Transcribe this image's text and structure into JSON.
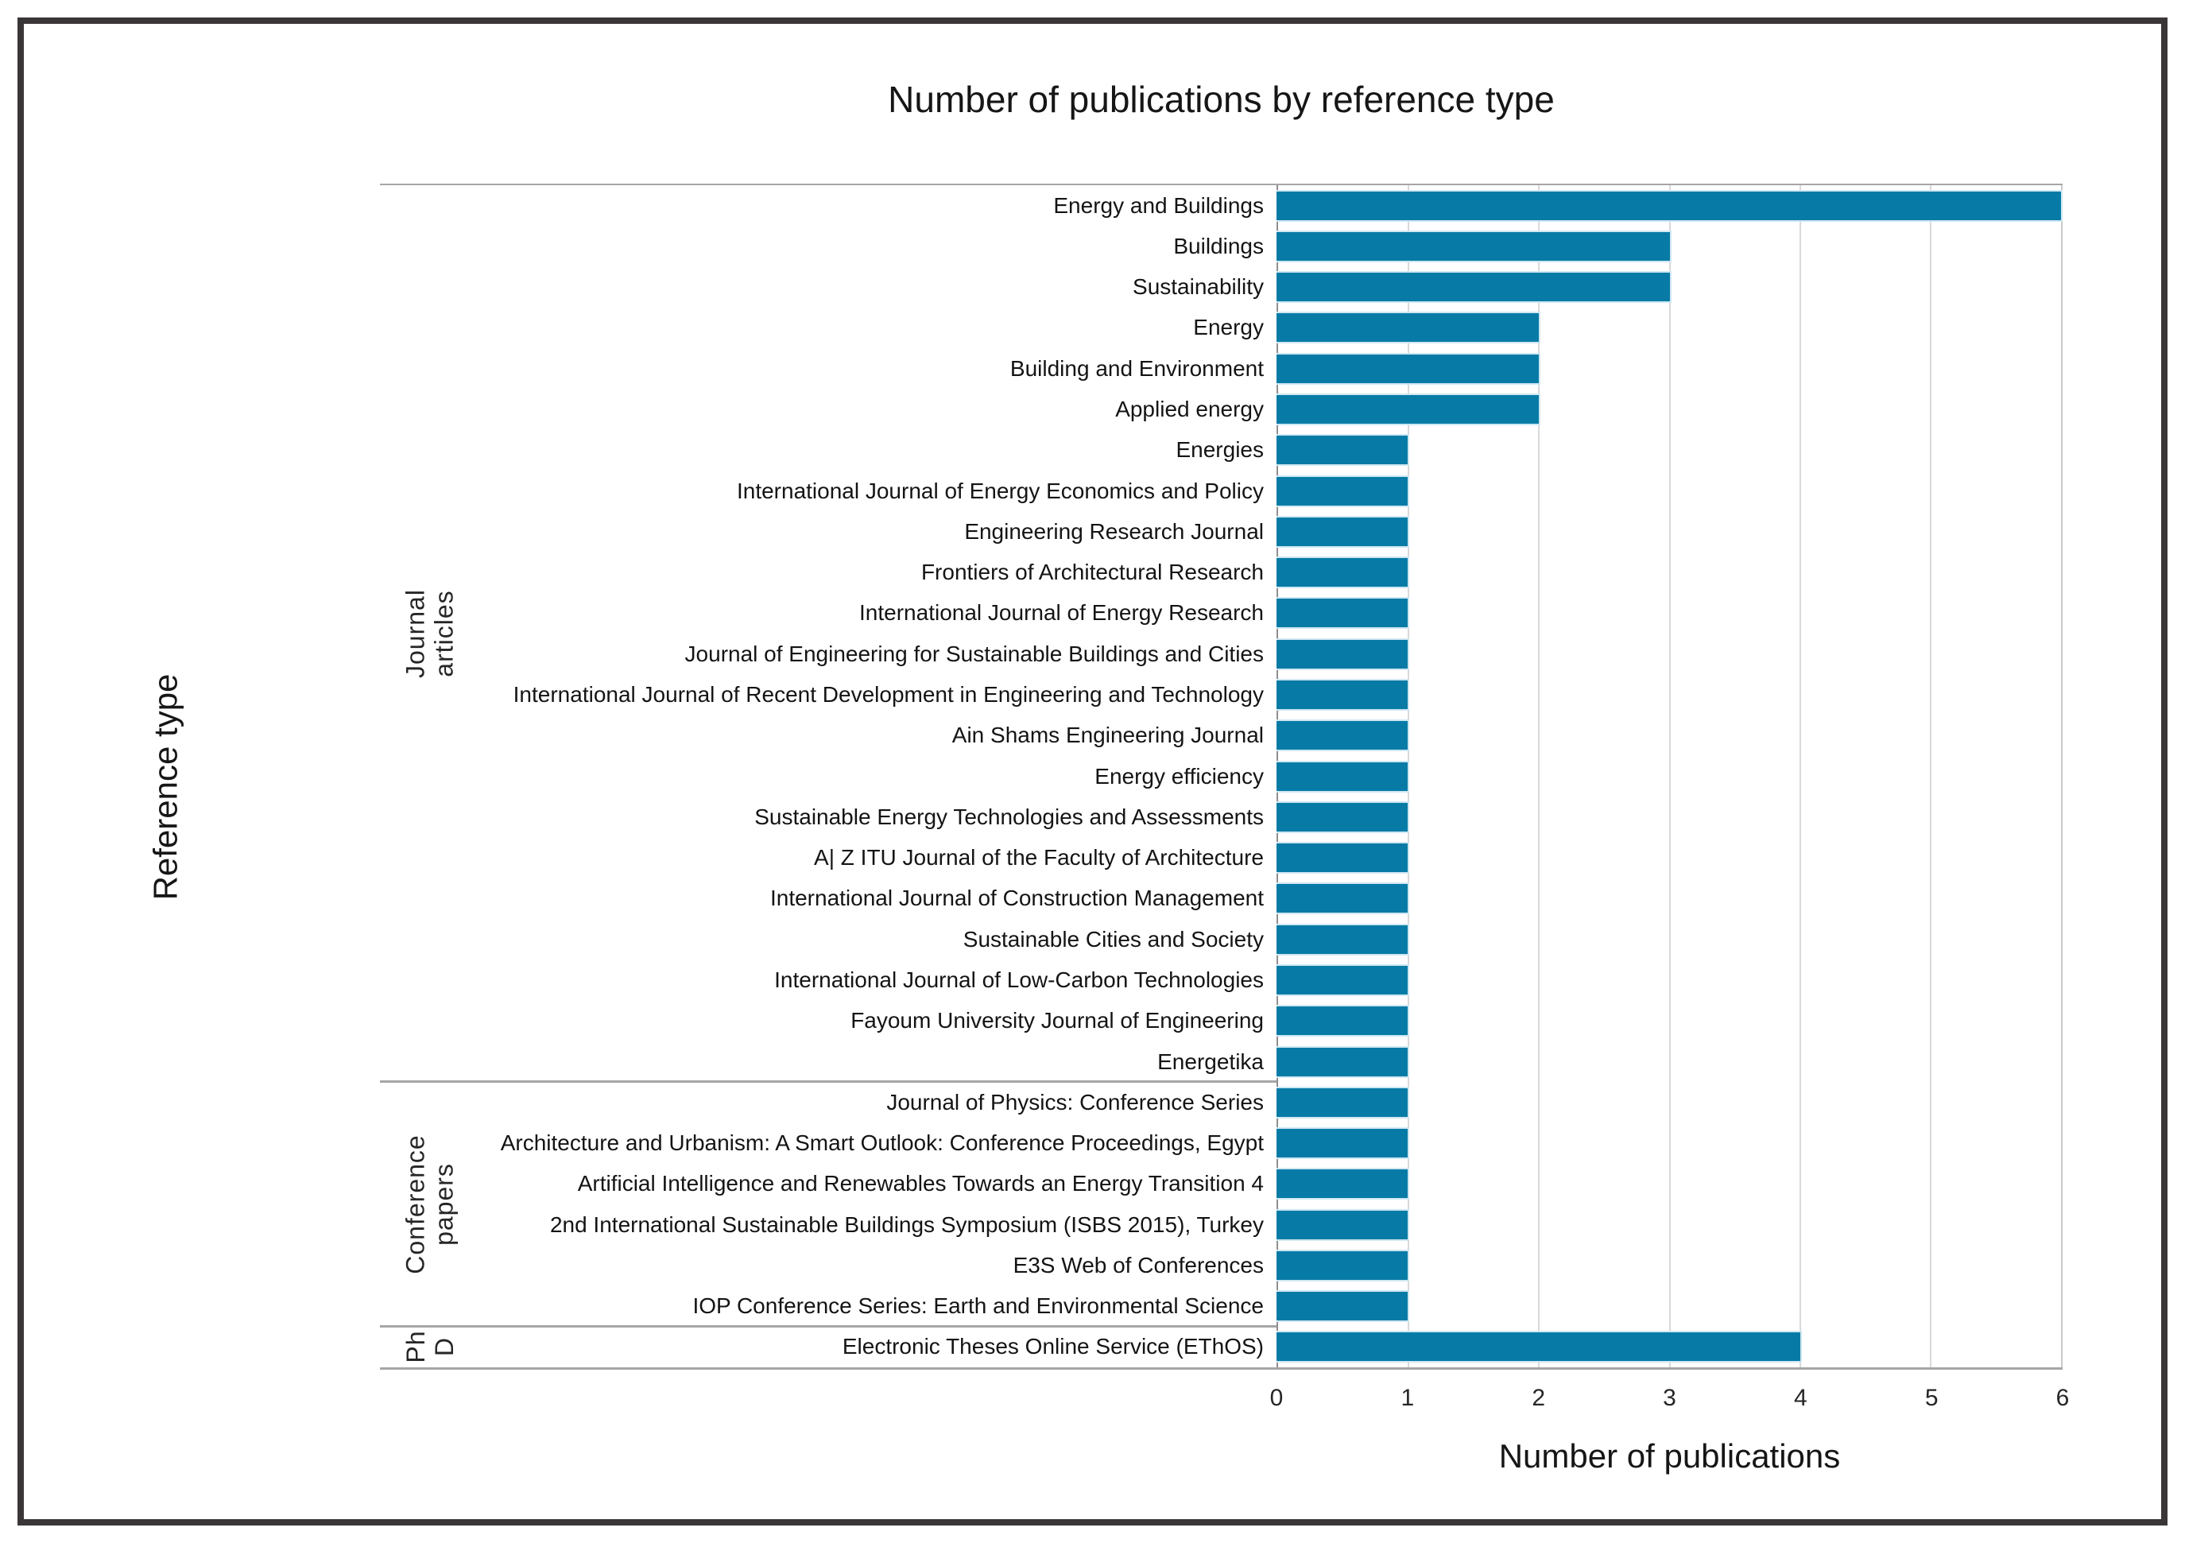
{
  "chart_data": {
    "type": "bar",
    "orientation": "horizontal",
    "title": "Number of publications by reference type",
    "xlabel": "Number of publications",
    "ylabel": "Reference type",
    "xlim": [
      0,
      6
    ],
    "xticks": [
      0,
      1,
      2,
      3,
      4,
      5,
      6
    ],
    "grid": "vertical-gridlines-at-integer-ticks",
    "legend": "none",
    "bar_color": "#077ba6",
    "bar_edge_color": "#cfe7f2",
    "divider_color": "#a6a6a6",
    "groups": [
      {
        "label": "Journal articles",
        "items": [
          {
            "category": "Energy and Buildings",
            "value": 6
          },
          {
            "category": "Buildings",
            "value": 3
          },
          {
            "category": "Sustainability",
            "value": 3
          },
          {
            "category": "Energy",
            "value": 2
          },
          {
            "category": "Building and Environment",
            "value": 2
          },
          {
            "category": "Applied energy",
            "value": 2
          },
          {
            "category": "Energies",
            "value": 1
          },
          {
            "category": "International Journal of Energy Economics and Policy",
            "value": 1
          },
          {
            "category": "Engineering Research Journal",
            "value": 1
          },
          {
            "category": "Frontiers of Architectural Research",
            "value": 1
          },
          {
            "category": "International Journal of Energy Research",
            "value": 1
          },
          {
            "category": "Journal of Engineering for Sustainable Buildings and Cities",
            "value": 1
          },
          {
            "category": "International Journal of Recent Development in Engineering and Technology",
            "value": 1
          },
          {
            "category": "Ain Shams Engineering Journal",
            "value": 1
          },
          {
            "category": "Energy efficiency",
            "value": 1
          },
          {
            "category": "Sustainable Energy Technologies and Assessments",
            "value": 1
          },
          {
            "category": "A| Z ITU Journal of the Faculty of Architecture",
            "value": 1
          },
          {
            "category": "International Journal of Construction Management",
            "value": 1
          },
          {
            "category": "Sustainable Cities and Society",
            "value": 1
          },
          {
            "category": "International Journal of Low-Carbon Technologies",
            "value": 1
          },
          {
            "category": "Fayoum University Journal of Engineering",
            "value": 1
          },
          {
            "category": "Energetika",
            "value": 1
          }
        ]
      },
      {
        "label": "Conference papers",
        "items": [
          {
            "category": "Journal of Physics: Conference Series",
            "value": 1
          },
          {
            "category": "Architecture and Urbanism: A Smart Outlook: Conference Proceedings, Egypt",
            "value": 1
          },
          {
            "category": "Artificial Intelligence and Renewables Towards an Energy Transition 4",
            "value": 1
          },
          {
            "category": "2nd International Sustainable Buildings Symposium (ISBS 2015), Turkey",
            "value": 1
          },
          {
            "category": "E3S Web of Conferences",
            "value": 1
          },
          {
            "category": "IOP Conference Series: Earth and Environmental Science",
            "value": 1
          }
        ]
      },
      {
        "label": "Ph D",
        "items": [
          {
            "category": "Electronic Theses Online Service (EThOS)",
            "value": 4
          }
        ]
      }
    ]
  }
}
